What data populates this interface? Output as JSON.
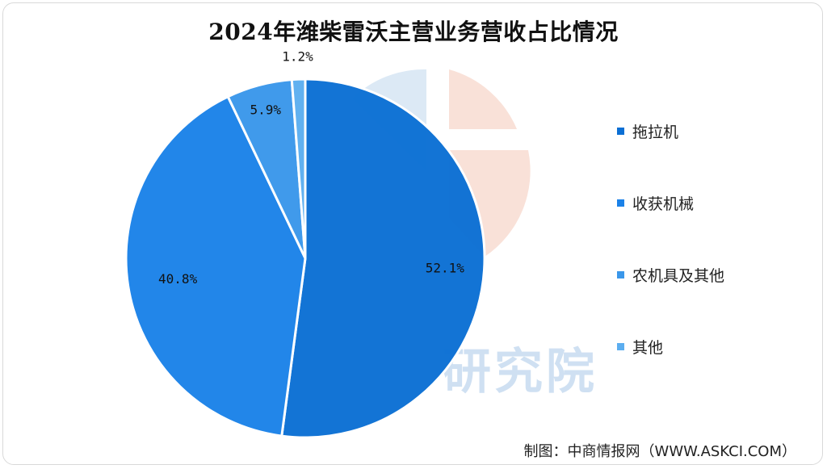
{
  "chart_data": {
    "type": "pie",
    "title": "2024年潍柴雷沃主营业务营收占比情况",
    "categories": [
      "拖拉机",
      "收获机械",
      "农机具及其他",
      "其他"
    ],
    "values": [
      52.1,
      40.8,
      5.9,
      1.2
    ],
    "labels": [
      "52.1%",
      "40.8%",
      "5.9%",
      "1.2%"
    ],
    "colors": [
      "#0b6fd4",
      "#1b82e8",
      "#3a97ea",
      "#5caef0"
    ],
    "legend_position": "right"
  },
  "watermark": {
    "text": "研究院"
  },
  "source": "制图：中商情报网（WWW.ASKCI.COM）"
}
